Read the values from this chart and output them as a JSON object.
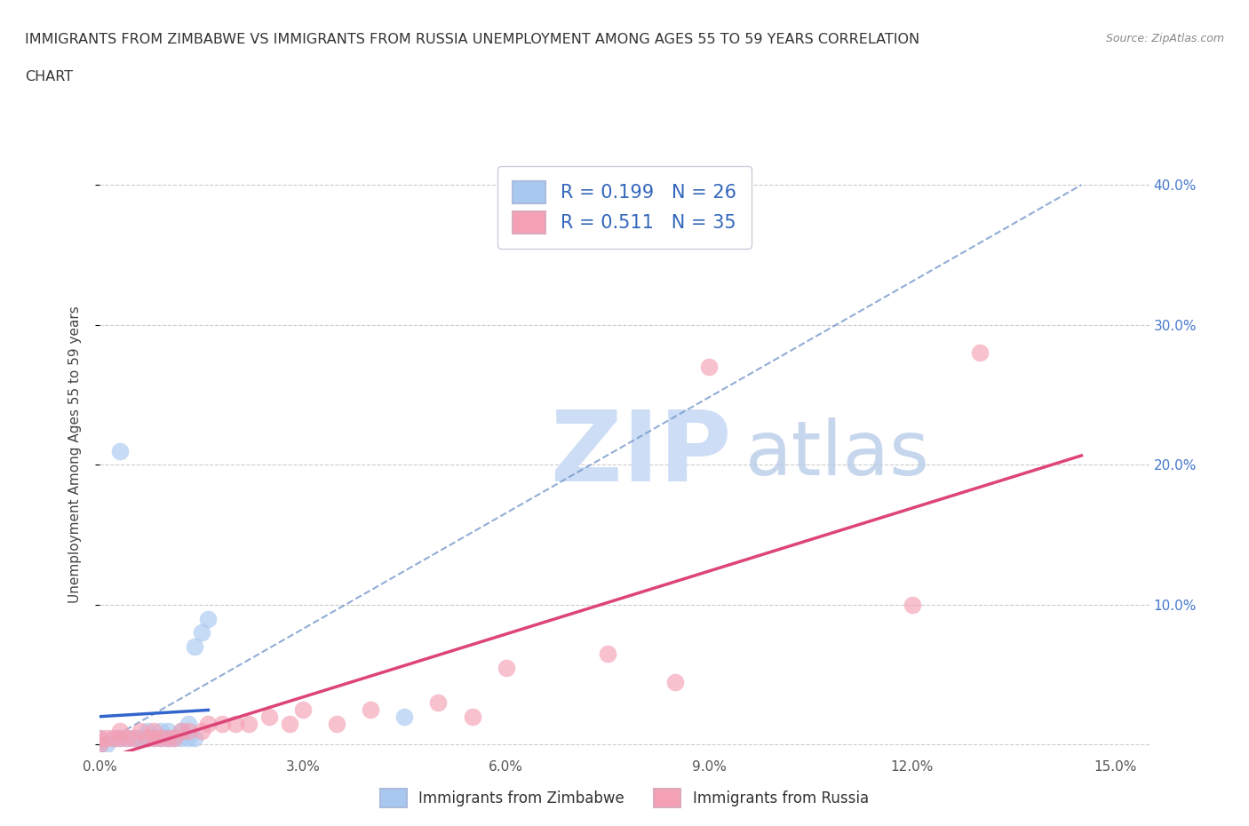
{
  "title_line1": "IMMIGRANTS FROM ZIMBABWE VS IMMIGRANTS FROM RUSSIA UNEMPLOYMENT AMONG AGES 55 TO 59 YEARS CORRELATION",
  "title_line2": "CHART",
  "source": "Source: ZipAtlas.com",
  "ylabel": "Unemployment Among Ages 55 to 59 years",
  "xlim": [
    0.0,
    0.155
  ],
  "ylim": [
    -0.005,
    0.42
  ],
  "xticks": [
    0.0,
    0.03,
    0.06,
    0.09,
    0.12,
    0.15
  ],
  "yticks": [
    0.0,
    0.1,
    0.2,
    0.3,
    0.4
  ],
  "ytick_labels_right": [
    "",
    "10.0%",
    "20.0%",
    "30.0%",
    "40.0%"
  ],
  "xtick_labels": [
    "0.0%",
    "3.0%",
    "6.0%",
    "9.0%",
    "12.0%",
    "15.0%"
  ],
  "zimbabwe_color": "#a8c8f0",
  "russia_color": "#f4a0b5",
  "zimbabwe_line_color": "#3366cc",
  "russia_line_color": "#dd4477",
  "dash_line_color": "#8888bb",
  "R_zimbabwe": 0.199,
  "N_zimbabwe": 26,
  "R_russia": 0.511,
  "N_russia": 35,
  "legend_label_zimbabwe": "Immigrants from Zimbabwe",
  "legend_label_russia": "Immigrants from Russia",
  "zimbabwe_x": [
    0.0,
    0.0,
    0.001,
    0.002,
    0.003,
    0.004,
    0.005,
    0.006,
    0.007,
    0.007,
    0.008,
    0.009,
    0.009,
    0.01,
    0.01,
    0.011,
    0.012,
    0.012,
    0.013,
    0.013,
    0.014,
    0.014,
    0.015,
    0.016,
    0.045,
    0.003
  ],
  "zimbabwe_y": [
    0.0,
    0.005,
    0.0,
    0.005,
    0.005,
    0.005,
    0.005,
    0.005,
    0.005,
    0.01,
    0.005,
    0.005,
    0.01,
    0.005,
    0.01,
    0.005,
    0.005,
    0.01,
    0.005,
    0.015,
    0.005,
    0.07,
    0.08,
    0.09,
    0.02,
    0.21
  ],
  "russia_x": [
    0.0,
    0.0,
    0.001,
    0.002,
    0.003,
    0.003,
    0.004,
    0.005,
    0.006,
    0.007,
    0.008,
    0.008,
    0.009,
    0.01,
    0.011,
    0.012,
    0.013,
    0.015,
    0.016,
    0.018,
    0.02,
    0.022,
    0.025,
    0.028,
    0.03,
    0.035,
    0.04,
    0.05,
    0.055,
    0.06,
    0.075,
    0.085,
    0.09,
    0.12,
    0.13
  ],
  "russia_y": [
    0.0,
    0.005,
    0.005,
    0.005,
    0.005,
    0.01,
    0.005,
    0.005,
    0.01,
    0.005,
    0.005,
    0.01,
    0.005,
    0.005,
    0.005,
    0.01,
    0.01,
    0.01,
    0.015,
    0.015,
    0.015,
    0.015,
    0.02,
    0.015,
    0.025,
    0.015,
    0.025,
    0.03,
    0.02,
    0.055,
    0.065,
    0.045,
    0.27,
    0.1,
    0.28
  ]
}
